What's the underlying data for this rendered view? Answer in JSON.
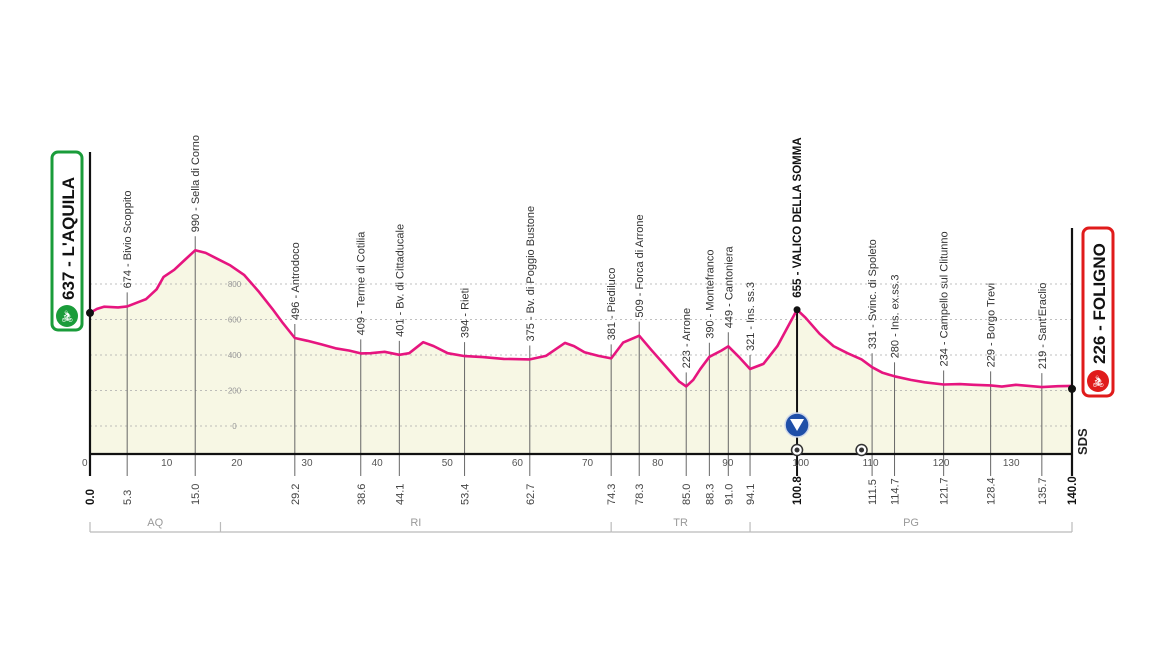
{
  "chart_data": {
    "type": "area",
    "title": "",
    "xlabel": "",
    "ylabel": "",
    "xlim": [
      0,
      140
    ],
    "ylim": [
      -160,
      1050
    ],
    "x_ticks": [
      0,
      10,
      20,
      30,
      40,
      50,
      60,
      70,
      80,
      90,
      100,
      110,
      120,
      130
    ],
    "y_ticks": [
      0,
      200,
      400,
      600,
      800
    ],
    "grid": true,
    "colors": {
      "line": "#e6157f",
      "fill": "#f7f7e4",
      "start": "#1a9c3a",
      "finish": "#e01b1b",
      "gpm": "#1f4fa8"
    },
    "profile": [
      [
        0,
        637
      ],
      [
        1,
        660
      ],
      [
        2,
        672
      ],
      [
        4,
        668
      ],
      [
        5.3,
        674
      ],
      [
        7,
        700
      ],
      [
        8,
        715
      ],
      [
        9.5,
        770
      ],
      [
        10.5,
        840
      ],
      [
        12,
        880
      ],
      [
        13.5,
        935
      ],
      [
        15,
        990
      ],
      [
        16.5,
        975
      ],
      [
        18,
        945
      ],
      [
        20,
        905
      ],
      [
        22,
        850
      ],
      [
        24,
        760
      ],
      [
        26,
        660
      ],
      [
        27.5,
        580
      ],
      [
        29.2,
        496
      ],
      [
        31,
        480
      ],
      [
        33,
        460
      ],
      [
        35,
        438
      ],
      [
        37,
        425
      ],
      [
        38.6,
        409
      ],
      [
        40,
        410
      ],
      [
        42,
        418
      ],
      [
        44.1,
        401
      ],
      [
        45.5,
        410
      ],
      [
        47.5,
        472
      ],
      [
        49,
        450
      ],
      [
        51,
        410
      ],
      [
        53.4,
        394
      ],
      [
        56,
        388
      ],
      [
        59,
        378
      ],
      [
        62.7,
        375
      ],
      [
        65,
        395
      ],
      [
        67.7,
        468
      ],
      [
        69,
        450
      ],
      [
        70.5,
        415
      ],
      [
        72.5,
        395
      ],
      [
        74.3,
        381
      ],
      [
        76,
        470
      ],
      [
        78.3,
        509
      ],
      [
        80,
        430
      ],
      [
        82,
        340
      ],
      [
        84,
        250
      ],
      [
        85,
        223
      ],
      [
        86,
        260
      ],
      [
        87,
        320
      ],
      [
        88.3,
        390
      ],
      [
        90,
        425
      ],
      [
        91,
        449
      ],
      [
        92.5,
        390
      ],
      [
        94.1,
        321
      ],
      [
        96,
        350
      ],
      [
        98,
        450
      ],
      [
        100.8,
        655
      ],
      [
        102,
        610
      ],
      [
        104,
        520
      ],
      [
        106,
        450
      ],
      [
        108,
        410
      ],
      [
        110,
        375
      ],
      [
        111.5,
        331
      ],
      [
        113,
        300
      ],
      [
        114.7,
        280
      ],
      [
        117,
        260
      ],
      [
        119,
        246
      ],
      [
        121.7,
        234
      ],
      [
        124,
        236
      ],
      [
        126,
        232
      ],
      [
        128.4,
        229
      ],
      [
        130,
        222
      ],
      [
        132,
        232
      ],
      [
        135.7,
        219
      ],
      [
        138,
        224
      ],
      [
        140,
        226
      ]
    ],
    "waypoints": [
      {
        "km": 5.3,
        "km_label": "5.3",
        "label": "674 - Bivio Scoppito",
        "ele": 674
      },
      {
        "km": 15.0,
        "km_label": "15.0",
        "label": "990 - Sella di Corno",
        "ele": 990
      },
      {
        "km": 29.2,
        "km_label": "29.2",
        "label": "496 - Antrodoco",
        "ele": 496
      },
      {
        "km": 38.6,
        "km_label": "38.6",
        "label": "409 - Terme di Cotilia",
        "ele": 409
      },
      {
        "km": 44.1,
        "km_label": "44.1",
        "label": "401 - Bv. di Cittaducale",
        "ele": 401
      },
      {
        "km": 53.4,
        "km_label": "53.4",
        "label": "394 - Rieti",
        "ele": 394
      },
      {
        "km": 62.7,
        "km_label": "62.7",
        "label": "375 - Bv. di Poggio Bustone",
        "ele": 375
      },
      {
        "km": 74.3,
        "km_label": "74.3",
        "label": "381 - Piediluco",
        "ele": 381
      },
      {
        "km": 78.3,
        "km_label": "78.3",
        "label": "509 - Forca di Arrone",
        "ele": 509
      },
      {
        "km": 85.0,
        "km_label": "85.0",
        "label": "223 - Arrone",
        "ele": 223
      },
      {
        "km": 88.3,
        "km_label": "88.3",
        "label": "390 - Montefranco",
        "ele": 390
      },
      {
        "km": 91.0,
        "km_label": "91.0",
        "label": "449 - Cantoniera",
        "ele": 449
      },
      {
        "km": 94.1,
        "km_label": "94.1",
        "label": "321 - Ins. ss.3",
        "ele": 321
      },
      {
        "km": 100.8,
        "km_label": "100.8",
        "label": "655 - VALICO DELLA SOMMA",
        "ele": 655,
        "bold": true
      },
      {
        "km": 111.5,
        "km_label": "111.5",
        "label": "331 - Svinc. di Spoleto",
        "ele": 331
      },
      {
        "km": 114.7,
        "km_label": "114.7",
        "label": "280 - Ins. ex.ss.3",
        "ele": 280
      },
      {
        "km": 121.7,
        "km_label": "121.7",
        "label": "234 - Campello sul Clitunno",
        "ele": 234
      },
      {
        "km": 128.4,
        "km_label": "128.4",
        "label": "229 - Borgo Trevi",
        "ele": 229
      },
      {
        "km": 135.7,
        "km_label": "135.7",
        "label": "219 - Sant'Eraclio",
        "ele": 219
      }
    ],
    "start": {
      "km": 0,
      "km_label": "0.0",
      "label": "637 - L'AQUILA",
      "ele": 637,
      "icon": "cyclist-icon"
    },
    "finish": {
      "km": 140,
      "km_label": "140.0",
      "label": "226 - FOLIGNO",
      "ele": 226,
      "icon": "cyclist-icon"
    },
    "gpm": {
      "km": 100.8,
      "icon": "mountain-triangle-icon"
    },
    "sprints": [
      {
        "km": 100.8,
        "icon": "target-icon"
      },
      {
        "km": 110,
        "icon": "target-icon"
      }
    ],
    "sds_label": "SDS",
    "regions": [
      {
        "label": "AQ",
        "from": 0,
        "to": 18.6
      },
      {
        "label": "RI",
        "from": 18.6,
        "to": 74.3
      },
      {
        "label": "TR",
        "from": 74.3,
        "to": 94.1
      },
      {
        "label": "PG",
        "from": 94.1,
        "to": 140
      }
    ]
  }
}
